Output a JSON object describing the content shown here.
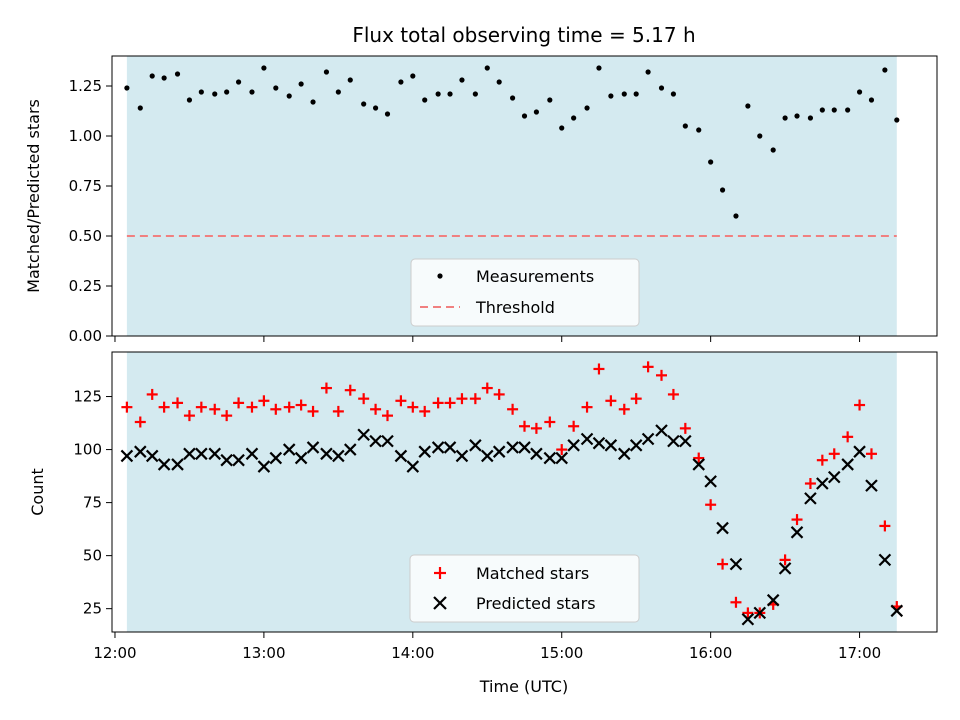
{
  "chart_data": [
    {
      "type": "scatter",
      "title": "Flux total observing time = 5.17 h",
      "xlabel": "",
      "ylabel": "Matched/Predicted stars",
      "ylim": [
        0,
        1.4
      ],
      "yticks": [
        "0.00",
        "0.25",
        "0.50",
        "0.75",
        "1.00",
        "1.25"
      ],
      "ytick_values": [
        0,
        0.25,
        0.5,
        0.75,
        1.0,
        1.25
      ],
      "observing_window_hours": [
        12.08,
        17.25
      ],
      "threshold": 0.5,
      "legend": [
        "Measurements",
        "Threshold"
      ],
      "legend_position": "bottom-center",
      "colors": {
        "span": "#d4eaf0",
        "points": "#000000",
        "threshold": "#f08080"
      },
      "series": [
        {
          "name": "Measurements",
          "x": [
            12.08,
            12.17,
            12.25,
            12.33,
            12.42,
            12.5,
            12.58,
            12.67,
            12.75,
            12.83,
            12.92,
            13.0,
            13.08,
            13.17,
            13.25,
            13.33,
            13.42,
            13.5,
            13.58,
            13.67,
            13.75,
            13.83,
            13.92,
            14.0,
            14.08,
            14.17,
            14.25,
            14.33,
            14.42,
            14.5,
            14.58,
            14.67,
            14.75,
            14.83,
            14.92,
            15.0,
            15.08,
            15.17,
            15.25,
            15.33,
            15.42,
            15.5,
            15.58,
            15.67,
            15.75,
            15.83,
            15.92,
            16.0,
            16.08,
            16.17,
            16.25,
            16.33,
            16.42,
            16.5,
            16.58,
            16.67,
            16.75,
            16.83,
            16.92,
            17.0,
            17.08,
            17.17,
            17.25
          ],
          "y": [
            1.24,
            1.14,
            1.3,
            1.29,
            1.31,
            1.18,
            1.22,
            1.21,
            1.22,
            1.27,
            1.22,
            1.34,
            1.24,
            1.2,
            1.26,
            1.17,
            1.32,
            1.22,
            1.28,
            1.16,
            1.14,
            1.11,
            1.27,
            1.3,
            1.18,
            1.21,
            1.21,
            1.28,
            1.21,
            1.34,
            1.27,
            1.19,
            1.1,
            1.12,
            1.18,
            1.04,
            1.09,
            1.14,
            1.34,
            1.2,
            1.21,
            1.21,
            1.32,
            1.24,
            1.21,
            1.05,
            1.03,
            0.87,
            0.73,
            0.6,
            1.15,
            1.0,
            0.93,
            1.09,
            1.1,
            1.09,
            1.13,
            1.13,
            1.13,
            1.22,
            1.18,
            1.33,
            1.08
          ]
        }
      ]
    },
    {
      "type": "scatter",
      "title": "",
      "xlabel": "Time (UTC)",
      "ylabel": "Count",
      "ylim": [
        14,
        146
      ],
      "yticks": [
        "25",
        "50",
        "75",
        "100",
        "125"
      ],
      "ytick_values": [
        25,
        50,
        75,
        100,
        125
      ],
      "xlim": [
        11.98,
        17.52
      ],
      "xticks": [
        "12:00",
        "13:00",
        "14:00",
        "15:00",
        "16:00",
        "17:00"
      ],
      "xtick_values": [
        12,
        13,
        14,
        15,
        16,
        17
      ],
      "observing_window_hours": [
        12.08,
        17.25
      ],
      "legend": [
        "Matched stars",
        "Predicted stars"
      ],
      "legend_position": "bottom-center",
      "colors": {
        "span": "#d4eaf0",
        "matched": "#ff0000",
        "predicted": "#000000"
      },
      "series": [
        {
          "name": "Matched stars",
          "x": [
            12.08,
            12.17,
            12.25,
            12.33,
            12.42,
            12.5,
            12.58,
            12.67,
            12.75,
            12.83,
            12.92,
            13.0,
            13.08,
            13.17,
            13.25,
            13.33,
            13.42,
            13.5,
            13.58,
            13.67,
            13.75,
            13.83,
            13.92,
            14.0,
            14.08,
            14.17,
            14.25,
            14.33,
            14.42,
            14.5,
            14.58,
            14.67,
            14.75,
            14.83,
            14.92,
            15.0,
            15.08,
            15.17,
            15.25,
            15.33,
            15.42,
            15.5,
            15.58,
            15.67,
            15.75,
            15.83,
            15.92,
            16.0,
            16.08,
            16.17,
            16.25,
            16.33,
            16.42,
            16.5,
            16.58,
            16.67,
            16.75,
            16.83,
            16.92,
            17.0,
            17.08,
            17.17,
            17.25
          ],
          "y": [
            120,
            113,
            126,
            120,
            122,
            116,
            120,
            119,
            116,
            122,
            120,
            123,
            119,
            120,
            121,
            118,
            129,
            118,
            128,
            124,
            119,
            116,
            123,
            120,
            118,
            122,
            122,
            124,
            124,
            129,
            126,
            119,
            111,
            110,
            113,
            100,
            111,
            120,
            138,
            123,
            119,
            124,
            139,
            135,
            126,
            110,
            96,
            74,
            46,
            28,
            23,
            23,
            27,
            48,
            67,
            84,
            95,
            98,
            106,
            121,
            98,
            64,
            26
          ]
        },
        {
          "name": "Predicted stars",
          "x": [
            12.08,
            12.17,
            12.25,
            12.33,
            12.42,
            12.5,
            12.58,
            12.67,
            12.75,
            12.83,
            12.92,
            13.0,
            13.08,
            13.17,
            13.25,
            13.33,
            13.42,
            13.5,
            13.58,
            13.67,
            13.75,
            13.83,
            13.92,
            14.0,
            14.08,
            14.17,
            14.25,
            14.33,
            14.42,
            14.5,
            14.58,
            14.67,
            14.75,
            14.83,
            14.92,
            15.0,
            15.08,
            15.17,
            15.25,
            15.33,
            15.42,
            15.5,
            15.58,
            15.67,
            15.75,
            15.83,
            15.92,
            16.0,
            16.08,
            16.17,
            16.25,
            16.33,
            16.42,
            16.5,
            16.58,
            16.67,
            16.75,
            16.83,
            16.92,
            17.0,
            17.08,
            17.17,
            17.25
          ],
          "y": [
            97,
            99,
            97,
            93,
            93,
            98,
            98,
            98,
            95,
            95,
            98,
            92,
            96,
            100,
            96,
            101,
            98,
            97,
            100,
            107,
            104,
            104,
            97,
            92,
            99,
            101,
            101,
            97,
            102,
            97,
            99,
            101,
            101,
            98,
            96,
            96,
            102,
            105,
            103,
            102,
            98,
            102,
            105,
            109,
            104,
            104,
            93,
            85,
            63,
            46,
            20,
            23,
            29,
            44,
            61,
            77,
            84,
            87,
            93,
            99,
            83,
            48,
            24
          ]
        }
      ]
    }
  ]
}
